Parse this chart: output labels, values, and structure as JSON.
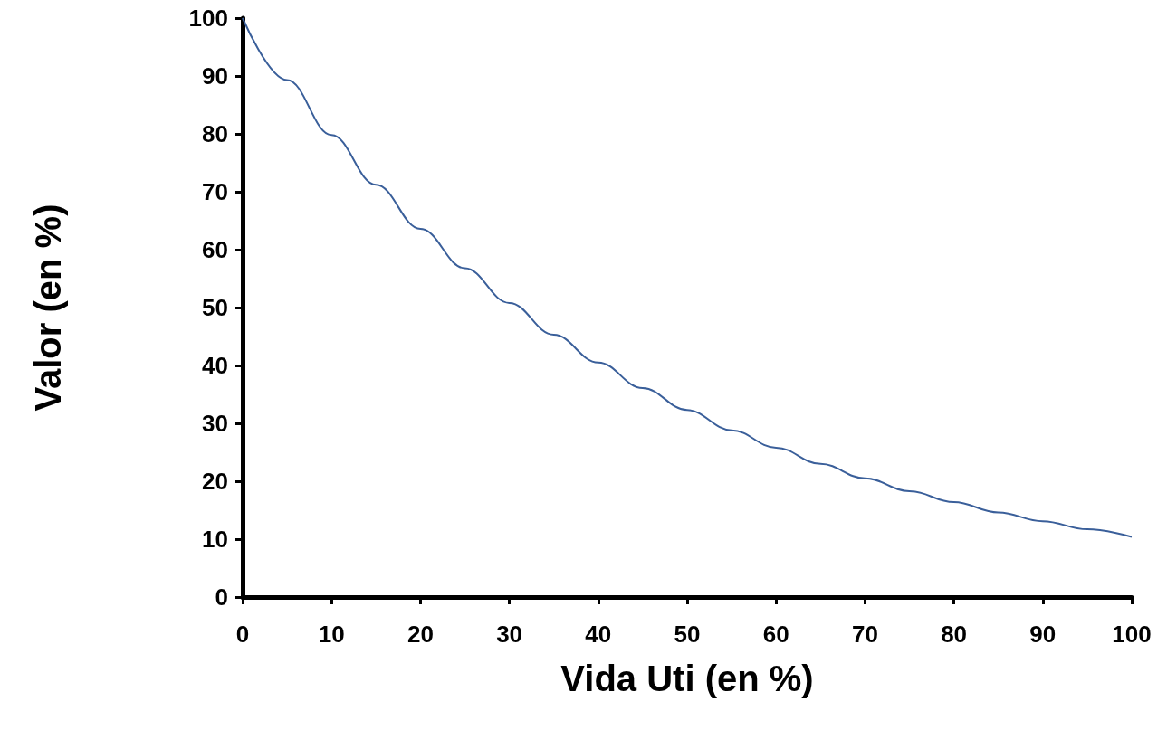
{
  "chart_data": {
    "type": "line",
    "xlabel": "Vida Uti (en %)",
    "ylabel": "Valor (en %)",
    "x": [
      0,
      5,
      10,
      15,
      20,
      25,
      30,
      35,
      40,
      45,
      50,
      55,
      60,
      65,
      70,
      75,
      80,
      85,
      90,
      95,
      100
    ],
    "series": [
      {
        "color": "#3a5f9a",
        "values": [
          100,
          89.3,
          79.8,
          71.2,
          63.6,
          56.8,
          50.8,
          45.3,
          40.5,
          36.1,
          32.3,
          28.8,
          25.8,
          23.0,
          20.5,
          18.3,
          16.4,
          14.6,
          13.1,
          11.7,
          10.4
        ]
      }
    ],
    "xlim": [
      0,
      100
    ],
    "xticks": [
      0,
      10,
      20,
      30,
      40,
      50,
      60,
      70,
      80,
      90,
      100
    ],
    "ylim": [
      0,
      100
    ],
    "yticks": [
      0,
      10,
      20,
      30,
      40,
      50,
      60,
      70,
      80,
      90,
      100
    ],
    "grid": false,
    "marker": "none",
    "line_style": "solid"
  }
}
